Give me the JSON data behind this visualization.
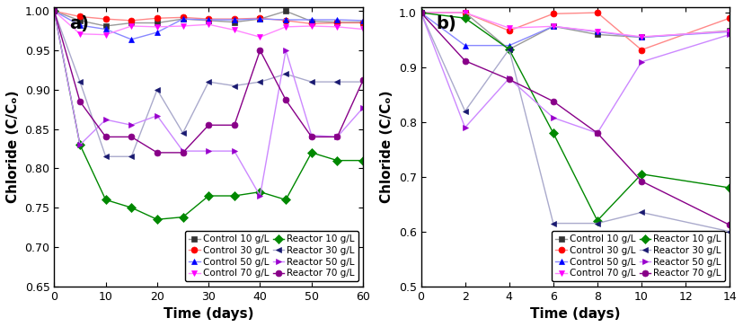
{
  "panel_a": {
    "title": "a)",
    "xlabel": "Time (days)",
    "ylabel": "Chloride (C/Cₒ)",
    "xlim": [
      0,
      60
    ],
    "ylim": [
      0.65,
      1.005
    ],
    "yticks": [
      0.65,
      0.7,
      0.75,
      0.8,
      0.85,
      0.9,
      0.95,
      1.0
    ],
    "xticks": [
      0,
      10,
      20,
      30,
      40,
      50,
      60
    ],
    "series": [
      {
        "label": "Control 10 g/L",
        "color": "#333333",
        "marker": "s",
        "markersize": 5,
        "linestyle": "-",
        "linecolor": "#999999",
        "x": [
          0,
          5,
          10,
          15,
          20,
          25,
          30,
          35,
          40,
          45,
          50,
          55,
          60
        ],
        "y": [
          1.0,
          0.988,
          0.981,
          0.985,
          0.985,
          0.99,
          0.988,
          0.986,
          0.99,
          1.0,
          0.987,
          0.986,
          0.986
        ]
      },
      {
        "label": "Control 30 g/L",
        "color": "#ff0000",
        "marker": "o",
        "markersize": 5,
        "linestyle": "-",
        "linecolor": "#ff8888",
        "x": [
          0,
          5,
          10,
          15,
          20,
          25,
          30,
          35,
          40,
          45,
          50,
          55,
          60
        ],
        "y": [
          1.0,
          0.993,
          0.99,
          0.988,
          0.991,
          0.992,
          0.99,
          0.99,
          0.991,
          0.988,
          0.984,
          0.985,
          0.985
        ]
      },
      {
        "label": "Control 50 g/L",
        "color": "#0000ff",
        "marker": "^",
        "markersize": 5,
        "linestyle": "-",
        "linecolor": "#8888ff",
        "x": [
          0,
          5,
          10,
          15,
          20,
          25,
          30,
          35,
          40,
          45,
          50,
          55,
          60
        ],
        "y": [
          1.0,
          0.982,
          0.977,
          0.964,
          0.973,
          0.99,
          0.989,
          0.989,
          0.99,
          0.989,
          0.989,
          0.989,
          0.988
        ]
      },
      {
        "label": "Control 70 g/L",
        "color": "#ff00ff",
        "marker": "v",
        "markersize": 5,
        "linestyle": "-",
        "linecolor": "#ff88ff",
        "x": [
          0,
          5,
          10,
          15,
          20,
          25,
          30,
          35,
          40,
          45,
          50,
          55,
          60
        ],
        "y": [
          1.0,
          0.971,
          0.97,
          0.981,
          0.98,
          0.981,
          0.983,
          0.976,
          0.967,
          0.98,
          0.981,
          0.98,
          0.977
        ]
      },
      {
        "label": "Reactor 10 g/L",
        "color": "#008800",
        "marker": "D",
        "markersize": 5,
        "linestyle": "-",
        "linecolor": "#008800",
        "x": [
          0,
          5,
          10,
          15,
          20,
          25,
          30,
          35,
          40,
          45,
          50,
          55,
          60
        ],
        "y": [
          1.0,
          0.83,
          0.76,
          0.75,
          0.735,
          0.738,
          0.765,
          0.765,
          0.77,
          0.76,
          0.82,
          0.81,
          0.81
        ]
      },
      {
        "label": "Reactor 30 g/L",
        "color": "#191970",
        "marker": "<",
        "markersize": 5,
        "linestyle": "-",
        "linecolor": "#aaaacc",
        "x": [
          0,
          5,
          10,
          15,
          20,
          25,
          30,
          35,
          40,
          45,
          50,
          55,
          60
        ],
        "y": [
          1.0,
          0.91,
          0.815,
          0.815,
          0.9,
          0.845,
          0.91,
          0.905,
          0.91,
          0.92,
          0.91,
          0.91,
          0.91
        ]
      },
      {
        "label": "Reactor 50 g/L",
        "color": "#9900cc",
        "marker": ">",
        "markersize": 5,
        "linestyle": "-",
        "linecolor": "#cc88ff",
        "x": [
          0,
          5,
          10,
          15,
          20,
          25,
          30,
          35,
          40,
          45,
          50,
          55,
          60
        ],
        "y": [
          1.0,
          0.83,
          0.862,
          0.855,
          0.867,
          0.822,
          0.822,
          0.822,
          0.765,
          0.95,
          0.842,
          0.84,
          0.877
        ]
      },
      {
        "label": "Reactor 70 g/L",
        "color": "#880088",
        "marker": "o",
        "markersize": 5,
        "linestyle": "-",
        "linecolor": "#880088",
        "x": [
          0,
          5,
          10,
          15,
          20,
          25,
          30,
          35,
          40,
          45,
          50,
          55,
          60
        ],
        "y": [
          1.0,
          0.885,
          0.84,
          0.84,
          0.82,
          0.82,
          0.855,
          0.855,
          0.95,
          0.887,
          0.84,
          0.84,
          0.912
        ]
      }
    ]
  },
  "panel_b": {
    "title": "b)",
    "xlabel": "Time (days)",
    "ylabel": "Chloride (C/Cₒ)",
    "xlim": [
      0,
      14
    ],
    "ylim": [
      0.5,
      1.01
    ],
    "yticks": [
      0.5,
      0.6,
      0.7,
      0.8,
      0.9,
      1.0
    ],
    "xticks": [
      0,
      2,
      4,
      6,
      8,
      10,
      12,
      14
    ],
    "series": [
      {
        "label": "Control 10 g/L",
        "color": "#333333",
        "marker": "s",
        "markersize": 5,
        "linestyle": "-",
        "linecolor": "#999999",
        "x": [
          0,
          2,
          4,
          6,
          8,
          10,
          14
        ],
        "y": [
          1.0,
          1.0,
          0.933,
          0.975,
          0.96,
          0.955,
          0.967
        ]
      },
      {
        "label": "Control 30 g/L",
        "color": "#ff0000",
        "marker": "o",
        "markersize": 5,
        "linestyle": "-",
        "linecolor": "#ff8888",
        "x": [
          0,
          2,
          4,
          6,
          8,
          10,
          14
        ],
        "y": [
          1.0,
          1.0,
          0.967,
          0.998,
          1.0,
          0.932,
          0.99
        ]
      },
      {
        "label": "Control 50 g/L",
        "color": "#0000ff",
        "marker": "^",
        "markersize": 5,
        "linestyle": "-",
        "linecolor": "#8888ff",
        "x": [
          0,
          2,
          4,
          6,
          8,
          10,
          14
        ],
        "y": [
          1.0,
          0.94,
          0.94,
          0.975,
          0.965,
          0.955,
          0.965
        ]
      },
      {
        "label": "Control 70 g/L",
        "color": "#ff00ff",
        "marker": "v",
        "markersize": 5,
        "linestyle": "-",
        "linecolor": "#ff88ff",
        "x": [
          0,
          2,
          4,
          6,
          8,
          10,
          14
        ],
        "y": [
          1.0,
          1.0,
          0.972,
          0.975,
          0.966,
          0.956,
          0.966
        ]
      },
      {
        "label": "Reactor 10 g/L",
        "color": "#008800",
        "marker": "D",
        "markersize": 5,
        "linestyle": "-",
        "linecolor": "#008800",
        "x": [
          0,
          2,
          4,
          6,
          8,
          10,
          14
        ],
        "y": [
          1.0,
          0.99,
          0.933,
          0.78,
          0.62,
          0.705,
          0.68
        ]
      },
      {
        "label": "Reactor 30 g/L",
        "color": "#191970",
        "marker": "<",
        "markersize": 5,
        "linestyle": "-",
        "linecolor": "#aaaacc",
        "x": [
          0,
          2,
          4,
          6,
          8,
          10,
          14
        ],
        "y": [
          1.0,
          0.82,
          0.933,
          0.615,
          0.615,
          0.635,
          0.6
        ]
      },
      {
        "label": "Reactor 50 g/L",
        "color": "#9900cc",
        "marker": ">",
        "markersize": 5,
        "linestyle": "-",
        "linecolor": "#cc88ff",
        "x": [
          0,
          2,
          4,
          6,
          8,
          10,
          14
        ],
        "y": [
          1.0,
          0.79,
          0.88,
          0.808,
          0.78,
          0.91,
          0.96
        ]
      },
      {
        "label": "Reactor 70 g/L",
        "color": "#880088",
        "marker": "o",
        "markersize": 5,
        "linestyle": "-",
        "linecolor": "#880088",
        "x": [
          0,
          2,
          4,
          6,
          8,
          10,
          14
        ],
        "y": [
          1.0,
          0.912,
          0.878,
          0.838,
          0.78,
          0.692,
          0.612
        ]
      }
    ]
  },
  "line_width": 1.0,
  "background_color": "#ffffff",
  "title_font_size": 14,
  "axis_label_font_size": 11,
  "tick_font_size": 9,
  "legend_font_size": 7.5
}
